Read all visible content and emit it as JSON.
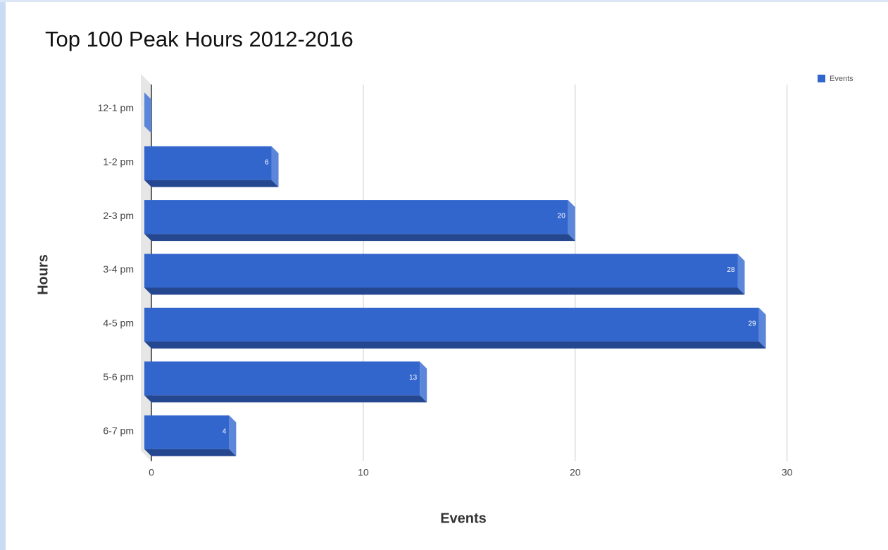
{
  "chart_data": {
    "type": "bar3d",
    "title": "Top 100 Peak Hours 2012-2016",
    "x_label": "Events",
    "y_label": "Hours",
    "categories": [
      "12-1 pm",
      "1-2 pm",
      "2-3 pm",
      "3-4 pm",
      "4-5 pm",
      "5-6 pm",
      "6-7 pm"
    ],
    "series": [
      {
        "name": "Events",
        "color": "#3366cc",
        "values": [
          0,
          6,
          20,
          28,
          29,
          13,
          4
        ]
      }
    ],
    "xlim": [
      0,
      33.5
    ],
    "xticks": [
      0,
      10,
      20,
      30
    ],
    "grid": true,
    "legend": "top-right"
  }
}
